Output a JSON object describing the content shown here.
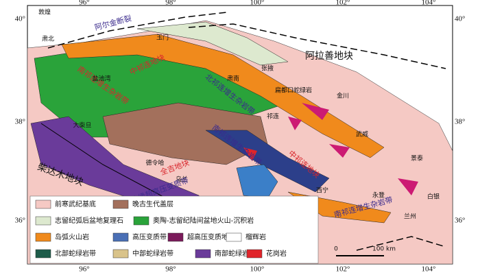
{
  "axes": {
    "top": [
      "96°",
      "98°",
      "100°",
      "102°",
      "104°"
    ],
    "bottom": [
      "96°",
      "98°",
      "100°",
      "102°",
      "104°"
    ],
    "left": [
      "40°",
      "38°",
      "36°"
    ],
    "right": [
      "40°",
      "38°",
      "36°"
    ]
  },
  "labels": [
    "敦煌",
    "阿尔金断裂",
    "玉门",
    "肃北",
    "阿拉善地块",
    "北祁连增生杂岩带",
    "中祁连地块",
    "南祁连增生杂岩带",
    "盐池湾",
    "肃南",
    "张掖",
    "扁都口蛇绿岩",
    "金川",
    "祁连",
    "大柴旦",
    "武威",
    "景泰",
    "德令哈",
    "全吉地块",
    "乌兰",
    "柴达木地块",
    "柴北缘超高压变质带",
    "南祁连增生杂岩带",
    "中祁连地块",
    "西宁",
    "永登",
    "白银",
    "兰州",
    "南祁连增生杂岩带"
  ],
  "legend": [
    "前寒武纪基底",
    "晚古生代盖层",
    "志留纪弧后盆地复理石",
    "奥陶-志留纪陆间盆地火山-沉积岩",
    "岛弧火山岩",
    "高压变质带",
    "超高压变质地体",
    "榴辉岩",
    "北部蛇绿岩带",
    "中部蛇绿岩带",
    "南部蛇绿岩带",
    "花岗岩"
  ],
  "scale": {
    "start": "0",
    "end": "100 km"
  }
}
